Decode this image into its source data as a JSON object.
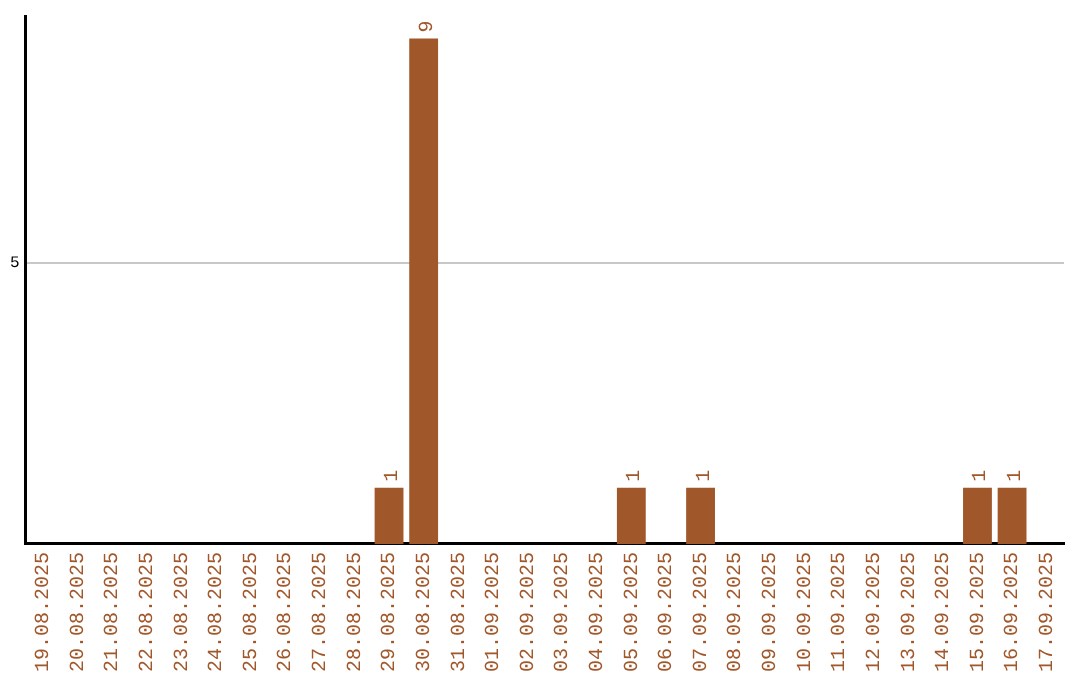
{
  "chart_data": {
    "type": "bar",
    "categories": [
      "19.08.2025",
      "20.08.2025",
      "21.08.2025",
      "22.08.2025",
      "23.08.2025",
      "24.08.2025",
      "25.08.2025",
      "26.08.2025",
      "27.08.2025",
      "28.08.2025",
      "29.08.2025",
      "30.08.2025",
      "31.08.2025",
      "01.09.2025",
      "02.09.2025",
      "03.09.2025",
      "04.09.2025",
      "05.09.2025",
      "06.09.2025",
      "07.09.2025",
      "08.09.2025",
      "09.09.2025",
      "10.09.2025",
      "11.09.2025",
      "12.09.2025",
      "13.09.2025",
      "14.09.2025",
      "15.09.2025",
      "16.09.2025",
      "17.09.2025"
    ],
    "values": [
      0,
      0,
      0,
      0,
      0,
      0,
      0,
      0,
      0,
      0,
      1,
      9,
      0,
      0,
      0,
      0,
      0,
      1,
      0,
      1,
      0,
      0,
      0,
      0,
      0,
      0,
      0,
      1,
      1,
      0
    ],
    "value_labels": [
      null,
      null,
      null,
      null,
      null,
      null,
      null,
      null,
      null,
      null,
      "1",
      "9",
      null,
      null,
      null,
      null,
      null,
      "1",
      null,
      "1",
      null,
      null,
      null,
      null,
      null,
      null,
      null,
      "1",
      "1",
      null
    ],
    "color": "#a0572a",
    "ylim": [
      0,
      9.4
    ],
    "yticks": [
      5
    ],
    "grid": "y",
    "legend": false
  }
}
